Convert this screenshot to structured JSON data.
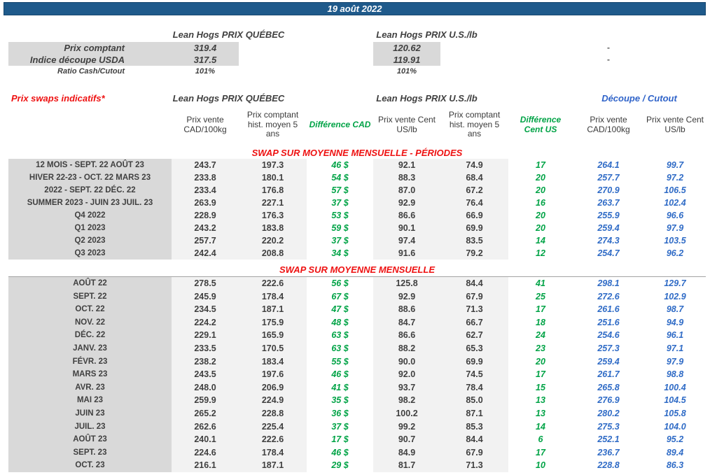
{
  "title_bar": {
    "date": "19 août 2022"
  },
  "spot": {
    "quebec_header": "Lean Hogs PRIX QUÉBEC",
    "us_header": "Lean Hogs PRIX U.S./lb",
    "rows": [
      {
        "label": "Prix comptant",
        "qc": "319.4",
        "us": "120.62",
        "cutout": "-"
      },
      {
        "label": "Indice découpe USDA",
        "qc": "317.5",
        "us": "119.91",
        "cutout": "-"
      },
      {
        "label": "Ratio Cash/Cutout",
        "qc": "101%",
        "us": "101%",
        "cutout": ""
      }
    ]
  },
  "swaps": {
    "title": "Prix swaps indicatifs*",
    "quebec_header": "Lean Hogs PRIX QUÉBEC",
    "us_header": "Lean Hogs PRIX U.S./lb",
    "cutout_header": "Découpe / Cutout",
    "columns": [
      "Prix vente CAD/100kg",
      "Prix comptant hist. moyen 5 ans",
      "Différence CAD",
      "Prix vente Cent US/lb",
      "Prix comptant hist. moyen 5 ans",
      "Différence Cent US",
      "Prix vente CAD/100kg",
      "Prix vente Cent US/lb"
    ],
    "sections": [
      {
        "title": "SWAP SUR MOYENNE MENSUELLE - PÉRIODES",
        "rows": [
          [
            "12 MOIS - SEPT. 22 AOÛT 23",
            "243.7",
            "197.3",
            "46 $",
            "92.1",
            "74.9",
            "17",
            "264.1",
            "99.7"
          ],
          [
            "HIVER 22-23 - OCT. 22 MARS 23",
            "233.8",
            "180.1",
            "54 $",
            "88.3",
            "68.4",
            "20",
            "257.7",
            "97.2"
          ],
          [
            "2022 - SEPT. 22 DÉC. 22",
            "233.4",
            "176.8",
            "57 $",
            "87.0",
            "67.2",
            "20",
            "270.9",
            "106.5"
          ],
          [
            "SUMMER 2023 - JUIN 23 JUIL. 23",
            "263.9",
            "227.1",
            "37 $",
            "92.9",
            "76.4",
            "16",
            "263.7",
            "102.4"
          ],
          [
            "Q4 2022",
            "228.9",
            "176.3",
            "53 $",
            "86.6",
            "66.9",
            "20",
            "255.9",
            "96.6"
          ],
          [
            "Q1 2023",
            "243.2",
            "183.8",
            "59 $",
            "90.1",
            "69.9",
            "20",
            "259.4",
            "97.9"
          ],
          [
            "Q2 2023",
            "257.7",
            "220.2",
            "37 $",
            "97.4",
            "83.5",
            "14",
            "274.3",
            "103.5"
          ],
          [
            "Q3 2023",
            "242.4",
            "208.8",
            "34 $",
            "91.6",
            "79.2",
            "12",
            "254.7",
            "96.2"
          ]
        ]
      },
      {
        "title": "SWAP SUR MOYENNE MENSUELLE",
        "rows": [
          [
            "AOÛT 22",
            "278.5",
            "222.6",
            "56 $",
            "125.8",
            "84.4",
            "41",
            "298.1",
            "129.7"
          ],
          [
            "SEPT. 22",
            "245.9",
            "178.4",
            "67 $",
            "92.9",
            "67.9",
            "25",
            "272.6",
            "102.9"
          ],
          [
            "OCT. 22",
            "234.5",
            "187.1",
            "47 $",
            "88.6",
            "71.3",
            "17",
            "261.6",
            "98.7"
          ],
          [
            "NOV. 22",
            "224.2",
            "175.9",
            "48 $",
            "84.7",
            "66.7",
            "18",
            "251.6",
            "94.9"
          ],
          [
            "DÉC. 22",
            "229.1",
            "165.9",
            "63 $",
            "86.6",
            "62.7",
            "24",
            "254.6",
            "96.1"
          ],
          [
            "JANV. 23",
            "233.5",
            "170.5",
            "63 $",
            "88.2",
            "65.3",
            "23",
            "257.3",
            "97.1"
          ],
          [
            "FÉVR. 23",
            "238.2",
            "183.4",
            "55 $",
            "90.0",
            "69.9",
            "20",
            "259.4",
            "97.9"
          ],
          [
            "MARS 23",
            "243.5",
            "197.6",
            "46 $",
            "92.0",
            "74.5",
            "17",
            "261.7",
            "98.8"
          ],
          [
            "AVR. 23",
            "248.0",
            "206.9",
            "41 $",
            "93.7",
            "78.4",
            "15",
            "265.8",
            "100.4"
          ],
          [
            "MAI 23",
            "259.9",
            "224.9",
            "35 $",
            "98.2",
            "85.0",
            "13",
            "276.9",
            "104.5"
          ],
          [
            "JUIN 23",
            "265.2",
            "228.8",
            "36 $",
            "100.2",
            "87.1",
            "13",
            "280.2",
            "105.8"
          ],
          [
            "JUIL. 23",
            "262.6",
            "225.4",
            "37 $",
            "99.2",
            "85.3",
            "14",
            "275.3",
            "104.0"
          ],
          [
            "AOÛT 23",
            "240.1",
            "222.6",
            "17 $",
            "90.7",
            "84.4",
            "6",
            "252.1",
            "95.2"
          ],
          [
            "SEPT. 23",
            "224.6",
            "178.4",
            "46 $",
            "84.9",
            "67.9",
            "17",
            "236.7",
            "89.4"
          ],
          [
            "OCT. 23",
            "216.1",
            "187.1",
            "29 $",
            "81.7",
            "71.3",
            "10",
            "228.8",
            "86.3"
          ]
        ]
      }
    ]
  },
  "colors": {
    "bar_background": "#1f5a8b",
    "red_accent": "#ee1111",
    "green_accent": "#00a346",
    "blue_accent": "#2f6bc6",
    "label_gray": "#d9d9d9",
    "light_gray": "#f2f2f2",
    "text_gray": "#404040"
  }
}
